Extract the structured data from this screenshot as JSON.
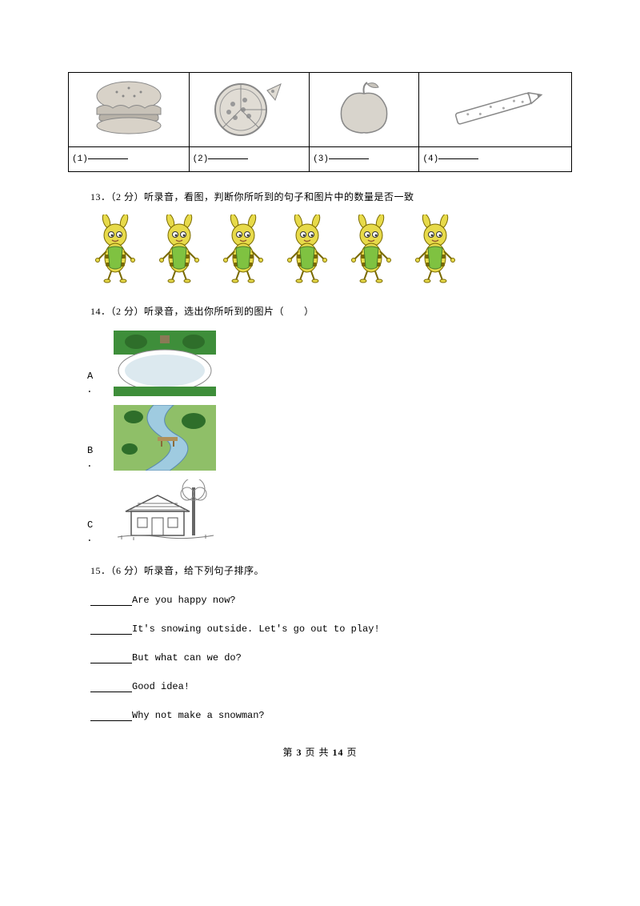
{
  "table": {
    "cells": [
      {
        "name": "hamburger",
        "label": "(1)"
      },
      {
        "name": "pizza",
        "label": "(2)"
      },
      {
        "name": "apple",
        "label": "(3)"
      },
      {
        "name": "pencil",
        "label": "(4)"
      }
    ]
  },
  "q13": {
    "num": "13．",
    "score": "（2 分）",
    "text": "听录音，看图，判断你所听到的句子和图片中的数量是否一致",
    "bee_count": 6
  },
  "q14": {
    "num": "14．",
    "score": "（2 分）",
    "text": "听录音，选出你所听到的图片（　　）",
    "options": [
      {
        "letter": "A ．",
        "img": "lake"
      },
      {
        "letter": "B ．",
        "img": "river"
      },
      {
        "letter": "C ．",
        "img": "house"
      }
    ]
  },
  "q15": {
    "num": "15．",
    "score": "（6 分）",
    "text": "听录音，给下列句子排序。",
    "lines": [
      "Are you happy now?",
      "It's snowing outside. Let's go out to play!",
      "But what can we do?",
      "Good idea!",
      "Why not make a snowman?"
    ]
  },
  "footer": {
    "prefix": "第 ",
    "page": "3",
    "middle": " 页 共 ",
    "total": "14",
    "suffix": " 页"
  },
  "colors": {
    "bee_body": "#e7da4a",
    "bee_dark": "#7a6a00",
    "bee_apron": "#7fc241",
    "lake_green": "#3e8e3a",
    "lake_water": "#dce9ef",
    "river_green": "#5aa34a",
    "river_water": "#9fcbe0",
    "house_gray": "#999999"
  }
}
